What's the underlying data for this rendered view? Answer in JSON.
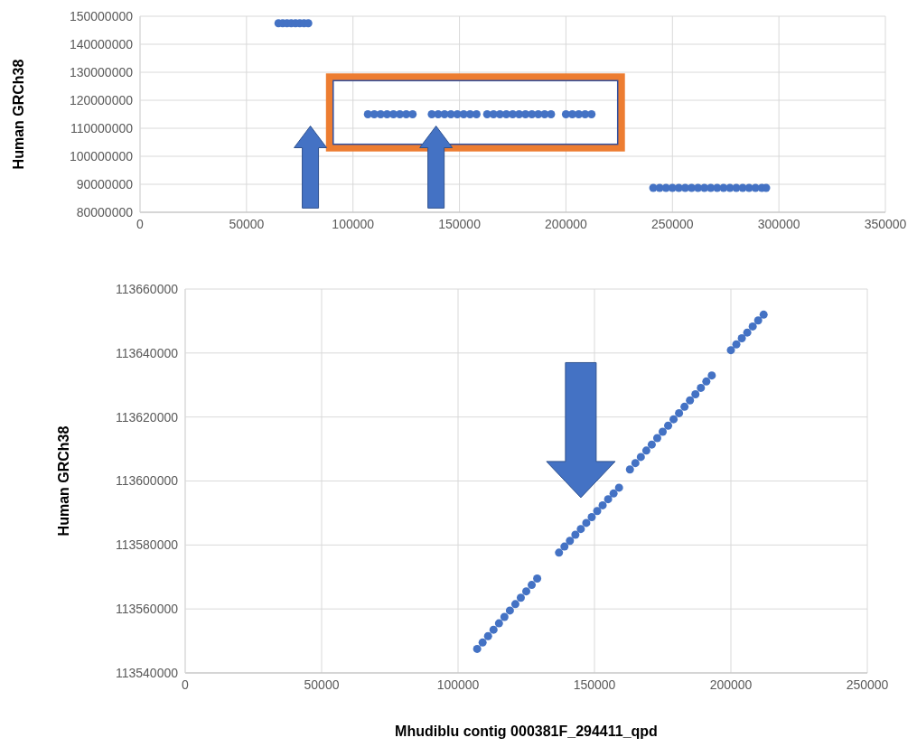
{
  "chart_data": [
    {
      "type": "scatter",
      "ylabel": "Human GRCh38",
      "color": "#4472c4",
      "marker": "circle",
      "grid": true,
      "x": [
        65000,
        67000,
        69000,
        71000,
        73000,
        75000,
        77000,
        79000,
        107000,
        110000,
        113000,
        116000,
        119000,
        122000,
        125000,
        128000,
        137000,
        140000,
        143000,
        146000,
        149000,
        152000,
        155000,
        158000,
        163000,
        166000,
        169000,
        172000,
        175000,
        178000,
        181000,
        184000,
        187000,
        190000,
        193000,
        200000,
        203000,
        206000,
        209000,
        212000,
        241000,
        244000,
        247000,
        250000,
        253000,
        256000,
        259000,
        262000,
        265000,
        268000,
        271000,
        274000,
        277000,
        280000,
        283000,
        286000,
        289000,
        292000,
        294000
      ],
      "values": [
        147500000,
        147500000,
        147500000,
        147500000,
        147500000,
        147500000,
        147500000,
        147500000,
        115000000,
        115000000,
        115000000,
        115000000,
        115000000,
        115000000,
        115000000,
        115000000,
        115000000,
        115000000,
        115000000,
        115000000,
        115000000,
        115000000,
        115000000,
        115000000,
        115000000,
        115000000,
        115000000,
        115000000,
        115000000,
        115000000,
        115000000,
        115000000,
        115000000,
        115000000,
        115000000,
        115000000,
        115000000,
        115000000,
        115000000,
        115000000,
        88700000,
        88700000,
        88700000,
        88700000,
        88700000,
        88700000,
        88700000,
        88700000,
        88700000,
        88700000,
        88700000,
        88700000,
        88700000,
        88700000,
        88700000,
        88700000,
        88700000,
        88700000,
        88700000
      ],
      "xlim": [
        0,
        350000
      ],
      "xticks": [
        0,
        50000,
        100000,
        150000,
        200000,
        250000,
        300000,
        350000
      ],
      "ylim": [
        80000000,
        150000000
      ],
      "yticks": [
        80000000,
        90000000,
        100000000,
        110000000,
        120000000,
        130000000,
        140000000,
        150000000
      ]
    },
    {
      "type": "scatter",
      "xlabel": "Mhudiblu contig 000381F_294411_qpd",
      "ylabel": "Human GRCh38",
      "color": "#4472c4",
      "marker": "circle",
      "grid": true,
      "x": [
        107000,
        109000,
        111000,
        113000,
        115000,
        117000,
        119000,
        121000,
        123000,
        125000,
        127000,
        129000,
        137000,
        139000,
        141000,
        143000,
        145000,
        147000,
        149000,
        151000,
        153000,
        155000,
        157000,
        159000,
        163000,
        165000,
        167000,
        169000,
        171000,
        173000,
        175000,
        177000,
        179000,
        181000,
        183000,
        185000,
        187000,
        189000,
        191000,
        193000,
        200000,
        202000,
        204000,
        206000,
        208000,
        210000,
        212000
      ],
      "values": [
        113547500,
        113549500,
        113551500,
        113553500,
        113555500,
        113557500,
        113559500,
        113561500,
        113563500,
        113565500,
        113567500,
        113569500,
        113577600,
        113579500,
        113581300,
        113583200,
        113585000,
        113586900,
        113588700,
        113590600,
        113592400,
        113594300,
        113596100,
        113597900,
        113603600,
        113605600,
        113607500,
        113609500,
        113611400,
        113613400,
        113615400,
        113617300,
        113619300,
        113621200,
        113623200,
        113625200,
        113627100,
        113629100,
        113631100,
        113633000,
        113640900,
        113642700,
        113644600,
        113646400,
        113648300,
        113650200,
        113652000
      ],
      "xlim": [
        0,
        250000
      ],
      "xticks": [
        0,
        50000,
        100000,
        150000,
        200000,
        250000
      ],
      "ylim": [
        113540000,
        113660000
      ],
      "yticks": [
        113540000,
        113560000,
        113580000,
        113600000,
        113620000,
        113640000,
        113660000
      ]
    }
  ]
}
